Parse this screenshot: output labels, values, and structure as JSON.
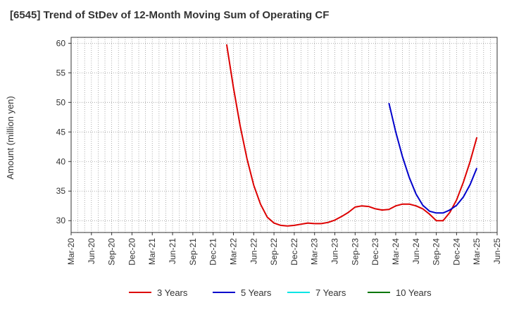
{
  "chart_data": {
    "type": "line",
    "title": "[6545]  Trend of StDev of 12-Month Moving Sum of Operating CF",
    "ylabel": "Amount (million yen)",
    "xlabel": "",
    "ylim": [
      28,
      61
    ],
    "yticks": [
      30,
      35,
      40,
      45,
      50,
      55,
      60
    ],
    "xlim": [
      "2020-03",
      "2025-06"
    ],
    "xticks": [
      "Mar-20",
      "Jun-20",
      "Sep-20",
      "Dec-20",
      "Mar-21",
      "Jun-21",
      "Sep-21",
      "Dec-21",
      "Mar-22",
      "Jun-22",
      "Sep-22",
      "Dec-22",
      "Mar-23",
      "Jun-23",
      "Sep-23",
      "Dec-23",
      "Mar-24",
      "Jun-24",
      "Sep-24",
      "Dec-24",
      "Mar-25",
      "Jun-25"
    ],
    "grid": true,
    "legend_position": "bottom",
    "series": [
      {
        "name": "3 Years",
        "color": "#dd0000",
        "points": [
          [
            "2022-02",
            59.8
          ],
          [
            "2022-03",
            52.5
          ],
          [
            "2022-04",
            46.0
          ],
          [
            "2022-05",
            40.5
          ],
          [
            "2022-06",
            36.0
          ],
          [
            "2022-07",
            32.8
          ],
          [
            "2022-08",
            30.6
          ],
          [
            "2022-09",
            29.6
          ],
          [
            "2022-10",
            29.2
          ],
          [
            "2022-11",
            29.1
          ],
          [
            "2022-12",
            29.2
          ],
          [
            "2022-13",
            29.4
          ],
          [
            "2023-02",
            29.6
          ],
          [
            "2023-03",
            29.5
          ],
          [
            "2023-04",
            29.5
          ],
          [
            "2023-05",
            29.7
          ],
          [
            "2023-06",
            30.1
          ],
          [
            "2023-07",
            30.7
          ],
          [
            "2023-08",
            31.4
          ],
          [
            "2023-09",
            32.3
          ],
          [
            "2023-10",
            32.5
          ],
          [
            "2023-11",
            32.4
          ],
          [
            "2023-12",
            32.0
          ],
          [
            "2023-13",
            31.8
          ],
          [
            "2024-02",
            31.9
          ],
          [
            "2024-03",
            32.5
          ],
          [
            "2024-04",
            32.8
          ],
          [
            "2024-05",
            32.8
          ],
          [
            "2024-06",
            32.5
          ],
          [
            "2024-07",
            32.0
          ],
          [
            "2024-08",
            31.1
          ],
          [
            "2024-09",
            30.0
          ],
          [
            "2024-10",
            30.0
          ],
          [
            "2024-11",
            31.4
          ],
          [
            "2024-12",
            33.5
          ],
          [
            "2024-13",
            36.5
          ],
          [
            "2025-02",
            40.0
          ],
          [
            "2025-03",
            44.1
          ]
        ]
      },
      {
        "name": "5 Years",
        "color": "#0000cc",
        "points": [
          [
            "2024-02",
            49.9
          ],
          [
            "2024-03",
            45.0
          ],
          [
            "2024-04",
            40.8
          ],
          [
            "2024-05",
            37.3
          ],
          [
            "2024-06",
            34.5
          ],
          [
            "2024-07",
            32.6
          ],
          [
            "2024-08",
            31.6
          ],
          [
            "2024-09",
            31.3
          ],
          [
            "2024-10",
            31.3
          ],
          [
            "2024-11",
            31.8
          ],
          [
            "2024-12",
            32.6
          ],
          [
            "2024-13",
            34.0
          ],
          [
            "2025-02",
            36.1
          ],
          [
            "2025-03",
            38.9
          ]
        ]
      },
      {
        "name": "7 Years",
        "color": "#00e5e5",
        "points": []
      },
      {
        "name": "10 Years",
        "color": "#007700",
        "points": []
      }
    ]
  }
}
